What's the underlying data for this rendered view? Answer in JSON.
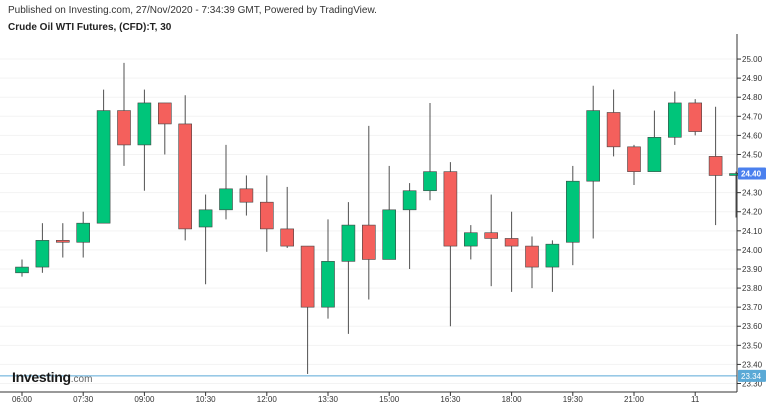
{
  "header": {
    "published": "Published on Investing.com, 27/Nov/2020 - 7:34:39 GMT, Powered by TradingView.",
    "title": "Crude Oil WTI Futures, (CFD):T, 30"
  },
  "logo": {
    "name": "Investing",
    "suffix": ".com"
  },
  "colors": {
    "up": "#00c57a",
    "down": "#f4605c",
    "wick": "#505050",
    "price_badge": "#4a80ee",
    "low_badge": "#5aa9d6",
    "low_line": "#5aa9d6"
  },
  "chart_data": {
    "type": "candlestick",
    "ylim": [
      23.3,
      25.05
    ],
    "y_ticks": [
      "25.00",
      "24.90",
      "24.80",
      "24.70",
      "24.60",
      "24.50",
      "24.40",
      "24.30",
      "24.20",
      "24.10",
      "24.00",
      "23.90",
      "23.80",
      "23.70",
      "23.60",
      "23.50",
      "23.40",
      "23.30"
    ],
    "x_ticks": [
      {
        "label": "06:00",
        "index": 0
      },
      {
        "label": "07:30",
        "index": 3
      },
      {
        "label": "09:00",
        "index": 6
      },
      {
        "label": "10:30",
        "index": 9
      },
      {
        "label": "12:00",
        "index": 12
      },
      {
        "label": "13:30",
        "index": 15
      },
      {
        "label": "15:00",
        "index": 18
      },
      {
        "label": "16:30",
        "index": 21
      },
      {
        "label": "18:00",
        "index": 24
      },
      {
        "label": "19:30",
        "index": 27
      },
      {
        "label": "21:00",
        "index": 30
      },
      {
        "label": "11",
        "index": 33
      }
    ],
    "candles": [
      {
        "o": 23.88,
        "h": 23.95,
        "l": 23.86,
        "c": 23.91
      },
      {
        "o": 23.91,
        "h": 24.14,
        "l": 23.88,
        "c": 24.05
      },
      {
        "o": 24.05,
        "h": 24.14,
        "l": 23.96,
        "c": 24.04
      },
      {
        "o": 24.04,
        "h": 24.2,
        "l": 23.96,
        "c": 24.14
      },
      {
        "o": 24.14,
        "h": 24.84,
        "l": 24.14,
        "c": 24.73
      },
      {
        "o": 24.73,
        "h": 24.98,
        "l": 24.44,
        "c": 24.55
      },
      {
        "o": 24.55,
        "h": 24.84,
        "l": 24.31,
        "c": 24.77
      },
      {
        "o": 24.77,
        "h": 24.77,
        "l": 24.5,
        "c": 24.66
      },
      {
        "o": 24.66,
        "h": 24.81,
        "l": 24.05,
        "c": 24.11
      },
      {
        "o": 24.12,
        "h": 24.29,
        "l": 23.82,
        "c": 24.21
      },
      {
        "o": 24.21,
        "h": 24.55,
        "l": 24.16,
        "c": 24.32
      },
      {
        "o": 24.32,
        "h": 24.39,
        "l": 24.18,
        "c": 24.25
      },
      {
        "o": 24.25,
        "h": 24.39,
        "l": 23.99,
        "c": 24.11
      },
      {
        "o": 24.11,
        "h": 24.33,
        "l": 24.01,
        "c": 24.02
      },
      {
        "o": 24.02,
        "h": 24.02,
        "l": 23.35,
        "c": 23.7
      },
      {
        "o": 23.7,
        "h": 24.16,
        "l": 23.64,
        "c": 23.94
      },
      {
        "o": 23.94,
        "h": 24.25,
        "l": 23.56,
        "c": 24.13
      },
      {
        "o": 24.13,
        "h": 24.65,
        "l": 23.74,
        "c": 23.95
      },
      {
        "o": 23.95,
        "h": 24.44,
        "l": 23.95,
        "c": 24.21
      },
      {
        "o": 24.21,
        "h": 24.35,
        "l": 23.9,
        "c": 24.31
      },
      {
        "o": 24.31,
        "h": 24.77,
        "l": 24.26,
        "c": 24.41
      },
      {
        "o": 24.41,
        "h": 24.46,
        "l": 23.6,
        "c": 24.02
      },
      {
        "o": 24.02,
        "h": 24.13,
        "l": 23.95,
        "c": 24.09
      },
      {
        "o": 24.09,
        "h": 24.29,
        "l": 23.81,
        "c": 24.06
      },
      {
        "o": 24.06,
        "h": 24.2,
        "l": 23.78,
        "c": 24.02
      },
      {
        "o": 24.02,
        "h": 24.07,
        "l": 23.8,
        "c": 23.91
      },
      {
        "o": 23.91,
        "h": 24.05,
        "l": 23.78,
        "c": 24.03
      },
      {
        "o": 24.04,
        "h": 24.44,
        "l": 23.92,
        "c": 24.36
      },
      {
        "o": 24.36,
        "h": 24.86,
        "l": 24.06,
        "c": 24.73
      },
      {
        "o": 24.72,
        "h": 24.84,
        "l": 24.49,
        "c": 24.54
      },
      {
        "o": 24.54,
        "h": 24.55,
        "l": 24.34,
        "c": 24.41
      },
      {
        "o": 24.41,
        "h": 24.73,
        "l": 24.41,
        "c": 24.59
      },
      {
        "o": 24.59,
        "h": 24.83,
        "l": 24.55,
        "c": 24.77
      },
      {
        "o": 24.77,
        "h": 24.79,
        "l": 24.6,
        "c": 24.62
      },
      {
        "o": 24.49,
        "h": 24.75,
        "l": 24.13,
        "c": 24.39
      },
      {
        "o": 24.39,
        "h": 24.41,
        "l": 24.17,
        "c": 24.4
      }
    ],
    "last_price": 24.4,
    "last_price_label": "24.40",
    "session_low": 23.34,
    "session_low_label": "23.34"
  }
}
